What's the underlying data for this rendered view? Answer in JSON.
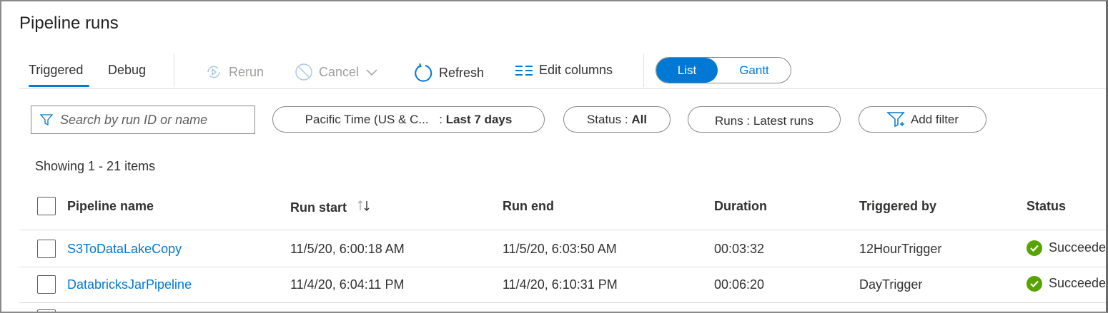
{
  "title": "Pipeline runs",
  "tabs": [
    {
      "label": "Triggered",
      "active": true
    },
    {
      "label": "Debug",
      "active": false
    }
  ],
  "toolbar": {
    "rerun": "Rerun",
    "cancel": "Cancel",
    "refresh": "Refresh",
    "edit_columns": "Edit columns"
  },
  "view_toggle": {
    "list": "List",
    "gantt": "Gantt",
    "selected": "List"
  },
  "search": {
    "placeholder": "Search by run ID or name",
    "value": ""
  },
  "filters": {
    "time_zone": "Pacific Time (US & C...",
    "time_sep": " : ",
    "time_range": "Last 7 days",
    "status_label": "Status : ",
    "status_value": "All",
    "runs": "Runs : Latest runs",
    "add_filter": "Add filter"
  },
  "showing": "Showing 1 - 21 items",
  "table": {
    "columns": [
      "Pipeline name",
      "Run start",
      "Run end",
      "Duration",
      "Triggered by",
      "Status"
    ],
    "rows": [
      {
        "name": "S3ToDataLakeCopy",
        "start": "11/5/20, 6:00:18 AM",
        "end": "11/5/20, 6:03:50 AM",
        "duration": "00:03:32",
        "trigger": "12HourTrigger",
        "status": "Succeeded"
      },
      {
        "name": "DatabricksJarPipeline",
        "start": "11/4/20, 6:04:11 PM",
        "end": "11/4/20, 6:10:31 PM",
        "duration": "00:06:20",
        "trigger": "DayTrigger",
        "status": "Succeeded"
      }
    ]
  },
  "colors": {
    "accent": "#0078d4",
    "success": "#57a300",
    "disabled": "#a19f9d"
  }
}
